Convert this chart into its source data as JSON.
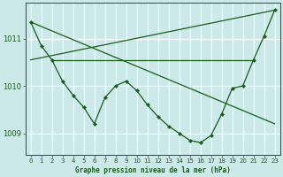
{
  "title": "Graphe pression niveau de la mer (hPa)",
  "bg_color": "#cce8e8",
  "grid_color": "#ffffff",
  "line_color": "#1a5c1a",
  "xlim": [
    -0.5,
    23.5
  ],
  "ylim": [
    1008.55,
    1011.75
  ],
  "yticks": [
    1009,
    1010,
    1011
  ],
  "xticks": [
    0,
    1,
    2,
    3,
    4,
    5,
    6,
    7,
    8,
    9,
    10,
    11,
    12,
    13,
    14,
    15,
    16,
    17,
    18,
    19,
    20,
    21,
    22,
    23
  ],
  "series1_x": [
    0,
    1,
    2,
    3,
    4,
    5,
    6,
    7,
    8,
    9,
    10,
    11,
    12,
    13,
    14,
    15,
    16,
    17,
    18,
    19,
    20,
    21,
    22,
    23
  ],
  "series1_y": [
    1011.35,
    1010.85,
    1010.55,
    1010.1,
    1009.8,
    1009.55,
    1009.2,
    1009.75,
    1010.0,
    1010.1,
    1009.9,
    1009.6,
    1009.35,
    1009.15,
    1009.0,
    1008.85,
    1008.8,
    1008.95,
    1009.4,
    1009.95,
    1010.0,
    1010.55,
    1011.05,
    1011.6
  ],
  "series2_x": [
    0,
    23
  ],
  "series2_y": [
    1011.35,
    1009.2
  ],
  "series3_x": [
    0,
    23
  ],
  "series3_y": [
    1010.55,
    1011.6
  ],
  "series4_x": [
    2,
    21
  ],
  "series4_y": [
    1010.55,
    1010.55
  ]
}
